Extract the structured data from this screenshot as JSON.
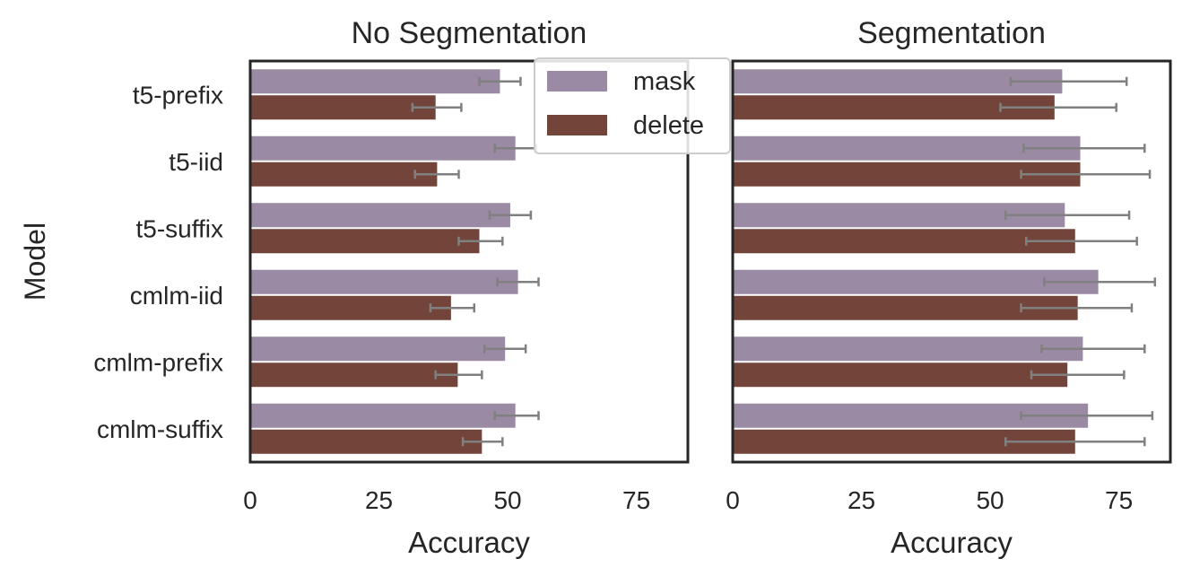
{
  "chart_data": {
    "type": "bar",
    "orientation": "horizontal",
    "ylabel": "Model",
    "categories": [
      "t5-prefix",
      "t5-iid",
      "t5-suffix",
      "cmlm-iid",
      "cmlm-prefix",
      "cmlm-suffix"
    ],
    "legend": {
      "placement": "top-right of first panel",
      "entries": [
        {
          "name": "mask",
          "color": "#9a8aa3"
        },
        {
          "name": "delete",
          "color": "#73443a"
        }
      ]
    },
    "error_bar_color": "#808080",
    "panels": [
      {
        "title": "No Segmentation",
        "xlabel": "Accuracy",
        "xlim": [
          0,
          85
        ],
        "xticks": [
          "0",
          "25",
          "50",
          "75"
        ],
        "series": [
          {
            "name": "mask",
            "values": [
              48.5,
              51.5,
              50.5,
              52,
              49.5,
              51.5
            ],
            "err_low": [
              44.5,
              47.5,
              46.5,
              48,
              45.5,
              47.5
            ],
            "err_high": [
              52.5,
              55.5,
              54.5,
              56,
              53.5,
              56
            ]
          },
          {
            "name": "delete",
            "values": [
              36,
              36.3,
              44.5,
              39,
              40.3,
              45
            ],
            "err_low": [
              31.5,
              32,
              40.5,
              35,
              36,
              41.3
            ],
            "err_high": [
              41,
              40.5,
              49,
              43.5,
              45,
              49
            ]
          }
        ]
      },
      {
        "title": "Segmentation",
        "xlabel": "Accuracy",
        "xlim": [
          0,
          85
        ],
        "xticks": [
          "0",
          "25",
          "50",
          "75"
        ],
        "series": [
          {
            "name": "mask",
            "values": [
              64,
              67.5,
              64.5,
              71,
              68,
              69
            ],
            "err_low": [
              54,
              56.5,
              53,
              60.5,
              60,
              56
            ],
            "err_high": [
              76.5,
              80,
              77,
              82,
              80,
              81.5
            ]
          },
          {
            "name": "delete",
            "values": [
              62.5,
              67.5,
              66.5,
              67,
              65,
              66.5
            ],
            "err_low": [
              52,
              56,
              57,
              56,
              58,
              53
            ],
            "err_high": [
              74.5,
              81,
              78.5,
              77.5,
              76,
              80
            ]
          }
        ]
      }
    ]
  }
}
